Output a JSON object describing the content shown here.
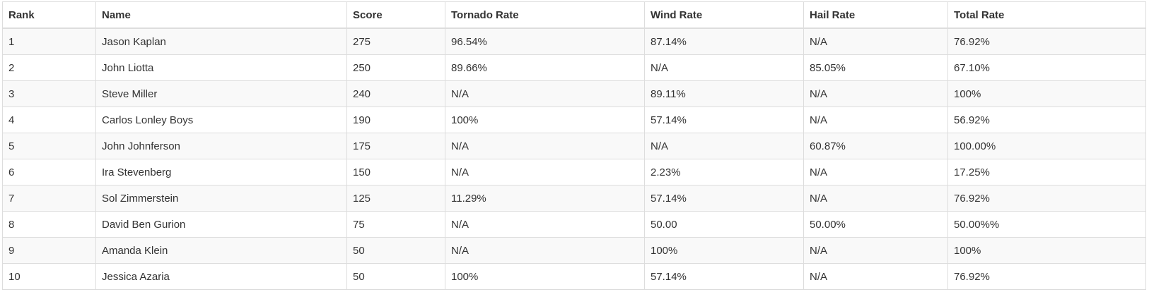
{
  "leaderboard": {
    "columns": [
      "Rank",
      "Name",
      "Score",
      "Tornado Rate",
      "Wind Rate",
      "Hail Rate",
      "Total Rate"
    ],
    "rows": [
      [
        "1",
        "Jason Kaplan",
        "275",
        "96.54%",
        "87.14%",
        "N/A",
        "76.92%"
      ],
      [
        "2",
        "John Liotta",
        "250",
        "89.66%",
        "N/A",
        "85.05%",
        "67.10%"
      ],
      [
        "3",
        "Steve Miller",
        "240",
        "N/A",
        "89.11%",
        "N/A",
        "100%"
      ],
      [
        "4",
        "Carlos Lonley Boys",
        "190",
        "100%",
        "57.14%",
        "N/A",
        "56.92%"
      ],
      [
        "5",
        "John Johnferson",
        "175",
        "N/A",
        "N/A",
        "60.87%",
        "100.00%"
      ],
      [
        "6",
        "Ira Stevenberg",
        "150",
        "N/A",
        "2.23%",
        "N/A",
        "17.25%"
      ],
      [
        "7",
        "Sol Zimmerstein",
        "125",
        "11.29%",
        "57.14%",
        "N/A",
        "76.92%"
      ],
      [
        "8",
        "David Ben Gurion",
        "75",
        "N/A",
        "50.00",
        "50.00%",
        "50.00%%"
      ],
      [
        "9",
        "Amanda Klein",
        "50",
        "N/A",
        "100%",
        "N/A",
        "100%"
      ],
      [
        "10",
        "Jessica Azaria",
        "50",
        "100%",
        "57.14%",
        "N/A",
        "76.92%"
      ]
    ]
  }
}
